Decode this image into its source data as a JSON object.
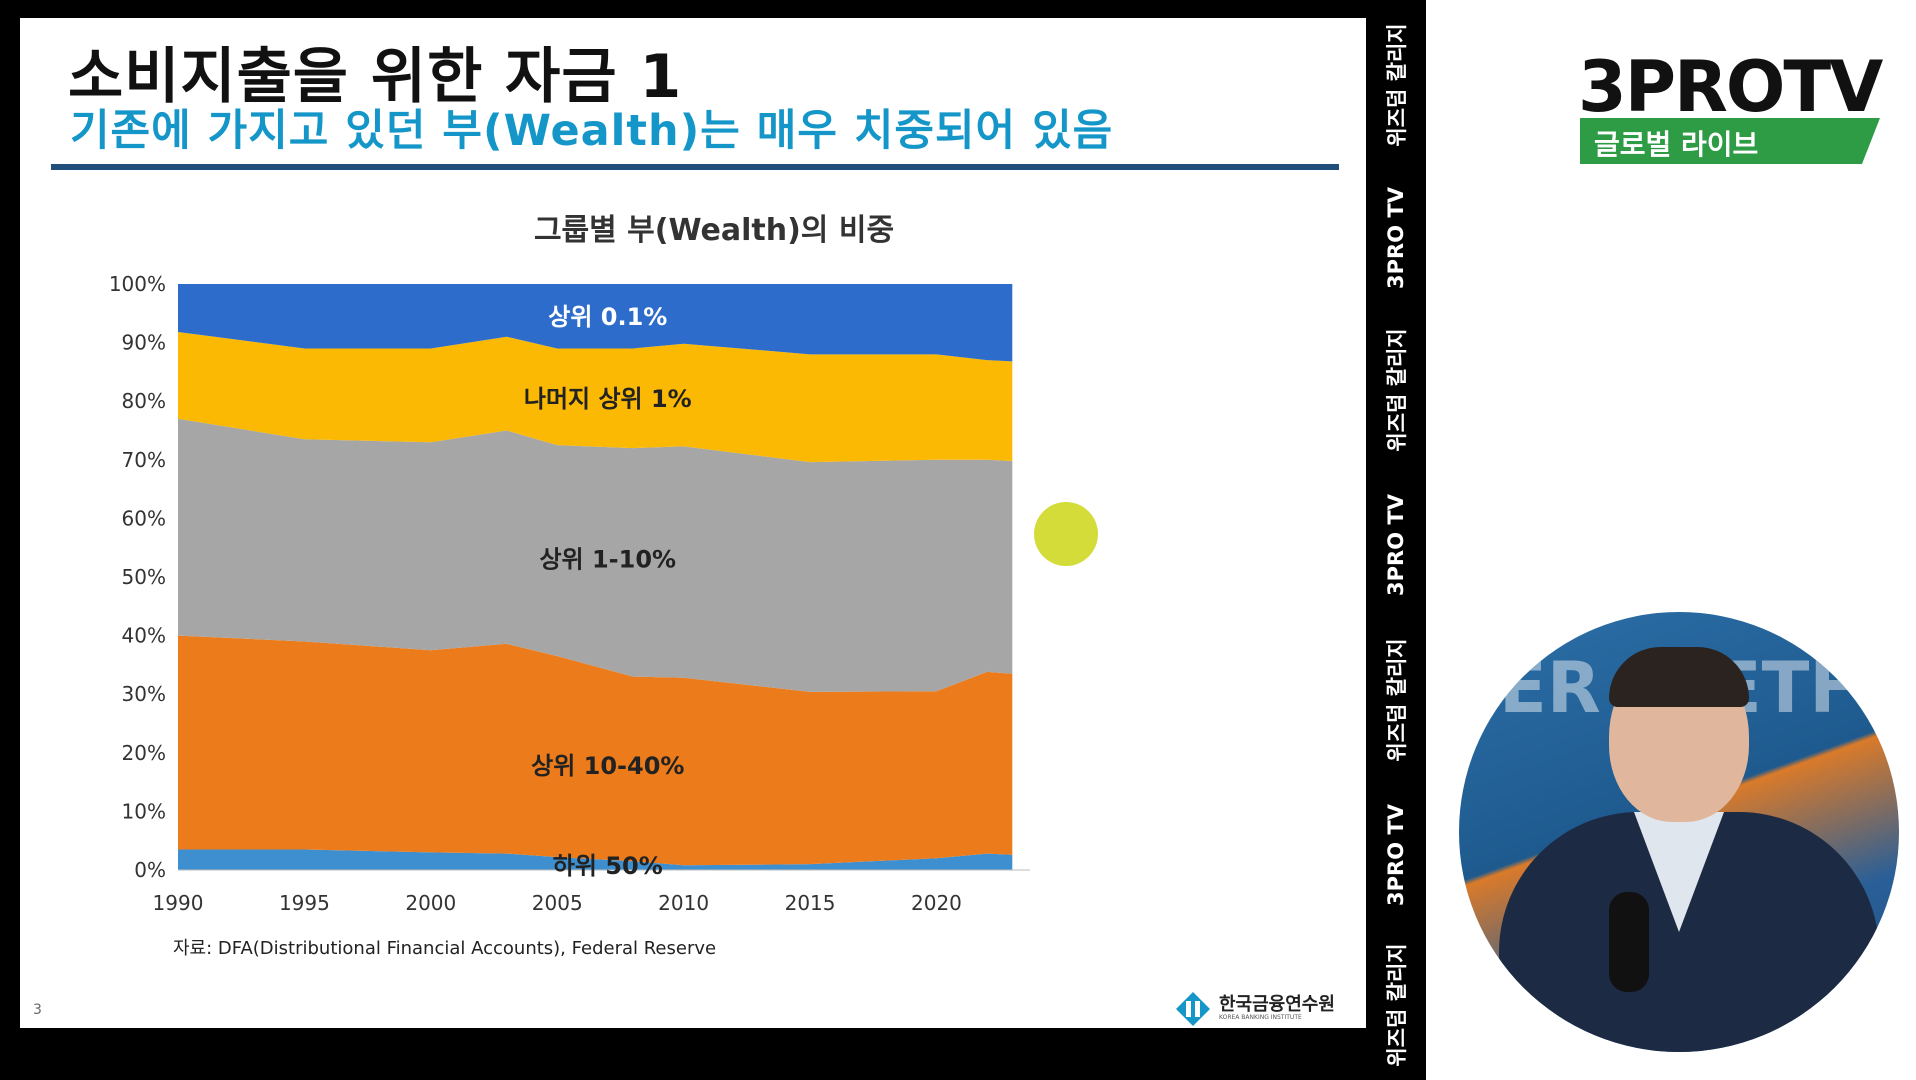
{
  "slide": {
    "title": "소비지출을 위한 자금 1",
    "subtitle": "기존에 가지고 있던 부(Wealth)는 매우 치중되어 있음",
    "page_number": "3",
    "source": "자료: DFA(Distributional Financial Accounts), Federal Reserve",
    "logo_name": "한국금융연수원",
    "logo_sub": "KOREA BANKING INSTITUTE"
  },
  "side_strip": {
    "items": [
      "위즈덤 칼리지",
      "3PRO TV",
      "위즈덤 칼리지",
      "3PRO TV",
      "위즈덤 칼리지",
      "3PRO TV",
      "위즈덤 칼리지"
    ]
  },
  "brand": {
    "name": "3PROTV",
    "subtitle": "글로벌 라이브",
    "accent": "#2e9b45"
  },
  "chart_data": {
    "type": "area",
    "title": "그룹별 부(Wealth)의 비중",
    "stacked": true,
    "x": [
      1990,
      1995,
      2000,
      2003,
      2005,
      2008,
      2010,
      2015,
      2020,
      2022,
      2023
    ],
    "x_ticks": [
      1990,
      1995,
      2000,
      2005,
      2010,
      2015,
      2020
    ],
    "y_ticks": [
      "0%",
      "10%",
      "20%",
      "30%",
      "40%",
      "50%",
      "60%",
      "70%",
      "80%",
      "90%",
      "100%"
    ],
    "ylim": [
      0,
      100
    ],
    "series": [
      {
        "name": "하위 50%",
        "color": "#3e8fd0",
        "values": [
          3.5,
          3.5,
          3.0,
          2.8,
          2.2,
          1.5,
          0.8,
          1.0,
          2.0,
          2.8,
          2.6
        ]
      },
      {
        "name": "상위 10-40%",
        "color": "#ec7c1b",
        "values": [
          36.5,
          35.5,
          34.5,
          35.8,
          34.3,
          31.5,
          32.0,
          29.4,
          28.5,
          31.0,
          30.9
        ]
      },
      {
        "name": "상위 1-10%",
        "color": "#a6a6a6",
        "values": [
          37.0,
          34.5,
          35.5,
          36.4,
          36.0,
          39.0,
          39.5,
          39.2,
          39.5,
          36.2,
          36.3
        ]
      },
      {
        "name": "나머지 상위 1%",
        "color": "#fbb904",
        "values": [
          14.8,
          15.5,
          16.0,
          16.0,
          16.5,
          17.0,
          17.5,
          18.4,
          18.0,
          17.0,
          17.0
        ]
      },
      {
        "name": "상위 0.1%",
        "color": "#2e6ccb",
        "values": [
          8.2,
          11.0,
          11.0,
          9.0,
          11.0,
          11.0,
          10.2,
          12.0,
          12.0,
          13.0,
          13.2
        ]
      }
    ]
  }
}
